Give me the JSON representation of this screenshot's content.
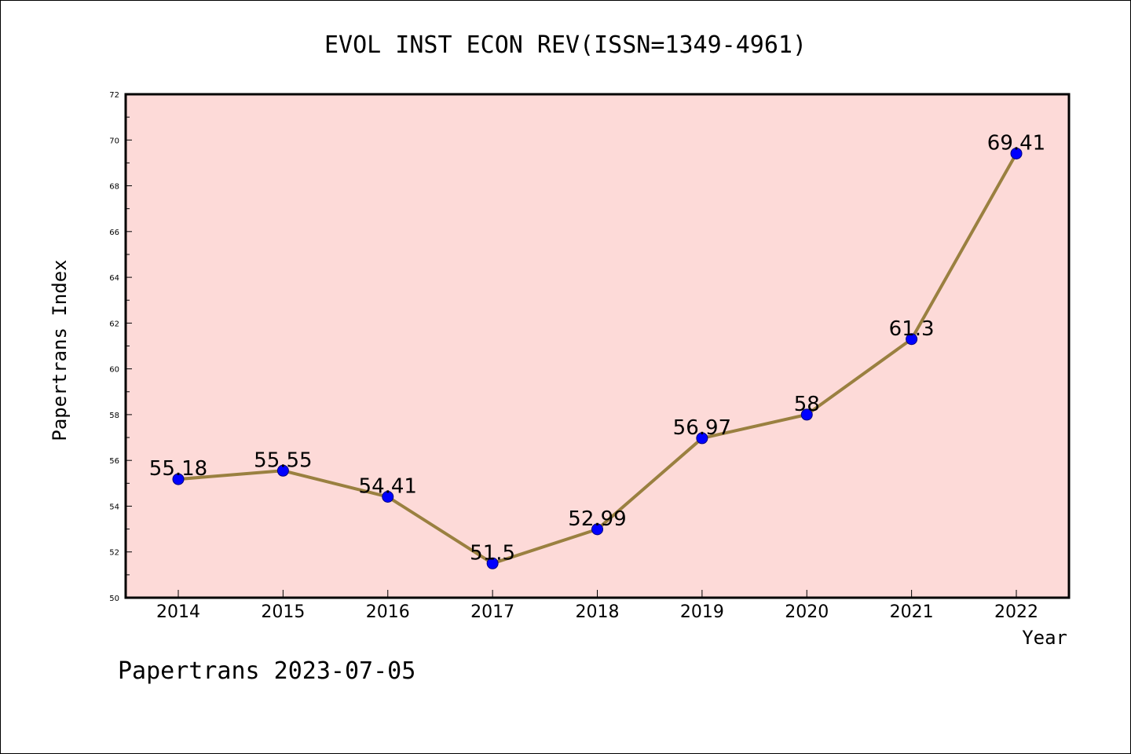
{
  "chart_data": {
    "type": "line",
    "title": "EVOL INST ECON REV(ISSN=1349-4961)",
    "xlabel": "Year",
    "ylabel": "Papertrans Index",
    "categories": [
      "2014",
      "2015",
      "2016",
      "2017",
      "2018",
      "2019",
      "2020",
      "2021",
      "2022"
    ],
    "series": [
      {
        "values": [
          55.18,
          55.55,
          54.41,
          51.5,
          52.99,
          56.97,
          58,
          61.3,
          69.41
        ],
        "labels": [
          "55.18",
          "55.55",
          "54.41",
          "51.5",
          "52.99",
          "56.97",
          "58",
          "61.3",
          "69.41"
        ]
      }
    ],
    "ylim": [
      50,
      72
    ],
    "yticks": [
      50,
      52,
      54,
      56,
      58,
      60,
      62,
      64,
      66,
      68,
      70,
      72
    ],
    "ytick_labels": [
      "50",
      "52",
      "54",
      "56",
      "58",
      "60",
      "62",
      "64",
      "66",
      "68",
      "70",
      "72"
    ],
    "grid": false,
    "footer": "Papertrans 2023-07-05",
    "colors": {
      "plot_background": "#fddad8",
      "line": "#9a8040",
      "marker": "#0000ff",
      "axis": "#000000"
    }
  }
}
